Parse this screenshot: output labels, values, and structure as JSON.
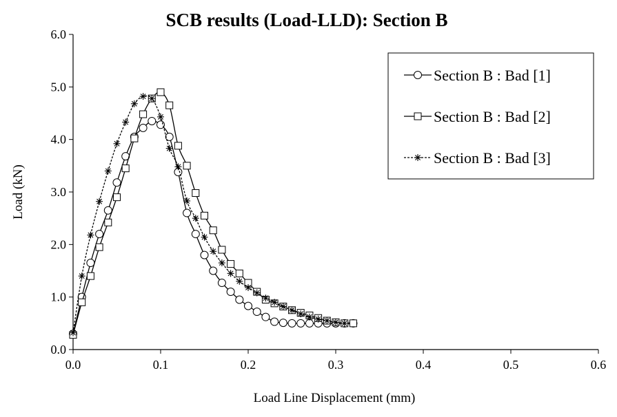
{
  "chart_data": {
    "type": "line",
    "title": "SCB results (Load-LLD): Section B",
    "xlabel": "Load Line Displacement (mm)",
    "ylabel": "Load (kN)",
    "xlim": [
      0,
      0.6
    ],
    "ylim": [
      0,
      6
    ],
    "x_ticks": [
      "0.0",
      "0.1",
      "0.2",
      "0.3",
      "0.4",
      "0.5",
      "0.6"
    ],
    "y_ticks": [
      "0.0",
      "1.0",
      "2.0",
      "3.0",
      "4.0",
      "5.0",
      "6.0"
    ],
    "grid": false,
    "legend_position": "top-right",
    "series": [
      {
        "name": "Section B : Bad [1]",
        "marker": "circle",
        "line": "solid",
        "points": [
          [
            0,
            0.3
          ],
          [
            0.01,
            1.0
          ],
          [
            0.02,
            1.65
          ],
          [
            0.03,
            2.2
          ],
          [
            0.04,
            2.65
          ],
          [
            0.05,
            3.18
          ],
          [
            0.06,
            3.68
          ],
          [
            0.07,
            4.05
          ],
          [
            0.08,
            4.22
          ],
          [
            0.09,
            4.35
          ],
          [
            0.1,
            4.28
          ],
          [
            0.11,
            4.05
          ],
          [
            0.12,
            3.38
          ],
          [
            0.13,
            2.6
          ],
          [
            0.14,
            2.2
          ],
          [
            0.15,
            1.8
          ],
          [
            0.16,
            1.5
          ],
          [
            0.17,
            1.27
          ],
          [
            0.18,
            1.1
          ],
          [
            0.19,
            0.95
          ],
          [
            0.2,
            0.83
          ],
          [
            0.21,
            0.72
          ],
          [
            0.22,
            0.62
          ],
          [
            0.23,
            0.53
          ],
          [
            0.24,
            0.51
          ],
          [
            0.25,
            0.5
          ],
          [
            0.26,
            0.5
          ],
          [
            0.27,
            0.5
          ],
          [
            0.28,
            0.5
          ],
          [
            0.29,
            0.5
          ],
          [
            0.3,
            0.5
          ],
          [
            0.31,
            0.5
          ],
          [
            0.32,
            0.5
          ]
        ]
      },
      {
        "name": "Section B : Bad [2]",
        "marker": "square",
        "line": "solid",
        "points": [
          [
            0,
            0.28
          ],
          [
            0.01,
            0.9
          ],
          [
            0.02,
            1.4
          ],
          [
            0.03,
            1.95
          ],
          [
            0.04,
            2.42
          ],
          [
            0.05,
            2.9
          ],
          [
            0.06,
            3.45
          ],
          [
            0.07,
            4.02
          ],
          [
            0.08,
            4.48
          ],
          [
            0.09,
            4.78
          ],
          [
            0.1,
            4.9
          ],
          [
            0.11,
            4.65
          ],
          [
            0.12,
            3.88
          ],
          [
            0.13,
            3.5
          ],
          [
            0.14,
            2.98
          ],
          [
            0.15,
            2.55
          ],
          [
            0.16,
            2.27
          ],
          [
            0.17,
            1.9
          ],
          [
            0.18,
            1.63
          ],
          [
            0.19,
            1.45
          ],
          [
            0.2,
            1.27
          ],
          [
            0.21,
            1.1
          ],
          [
            0.22,
            0.95
          ],
          [
            0.23,
            0.88
          ],
          [
            0.24,
            0.82
          ],
          [
            0.25,
            0.75
          ],
          [
            0.26,
            0.7
          ],
          [
            0.27,
            0.65
          ],
          [
            0.28,
            0.6
          ],
          [
            0.29,
            0.55
          ],
          [
            0.3,
            0.52
          ],
          [
            0.31,
            0.5
          ],
          [
            0.32,
            0.5
          ]
        ]
      },
      {
        "name": "Section B : Bad [3]",
        "marker": "asterisk",
        "line": "dotted",
        "points": [
          [
            0,
            0.32
          ],
          [
            0.01,
            1.4
          ],
          [
            0.02,
            2.18
          ],
          [
            0.03,
            2.82
          ],
          [
            0.04,
            3.4
          ],
          [
            0.05,
            3.92
          ],
          [
            0.06,
            4.33
          ],
          [
            0.07,
            4.68
          ],
          [
            0.08,
            4.82
          ],
          [
            0.09,
            4.78
          ],
          [
            0.1,
            4.43
          ],
          [
            0.11,
            3.83
          ],
          [
            0.12,
            3.48
          ],
          [
            0.13,
            2.83
          ],
          [
            0.14,
            2.5
          ],
          [
            0.15,
            2.14
          ],
          [
            0.16,
            1.87
          ],
          [
            0.17,
            1.65
          ],
          [
            0.18,
            1.45
          ],
          [
            0.19,
            1.3
          ],
          [
            0.2,
            1.18
          ],
          [
            0.21,
            1.08
          ],
          [
            0.22,
            0.98
          ],
          [
            0.23,
            0.9
          ],
          [
            0.24,
            0.82
          ],
          [
            0.25,
            0.75
          ],
          [
            0.26,
            0.68
          ],
          [
            0.27,
            0.62
          ],
          [
            0.28,
            0.58
          ],
          [
            0.29,
            0.55
          ],
          [
            0.3,
            0.52
          ],
          [
            0.31,
            0.5
          ]
        ]
      }
    ]
  }
}
